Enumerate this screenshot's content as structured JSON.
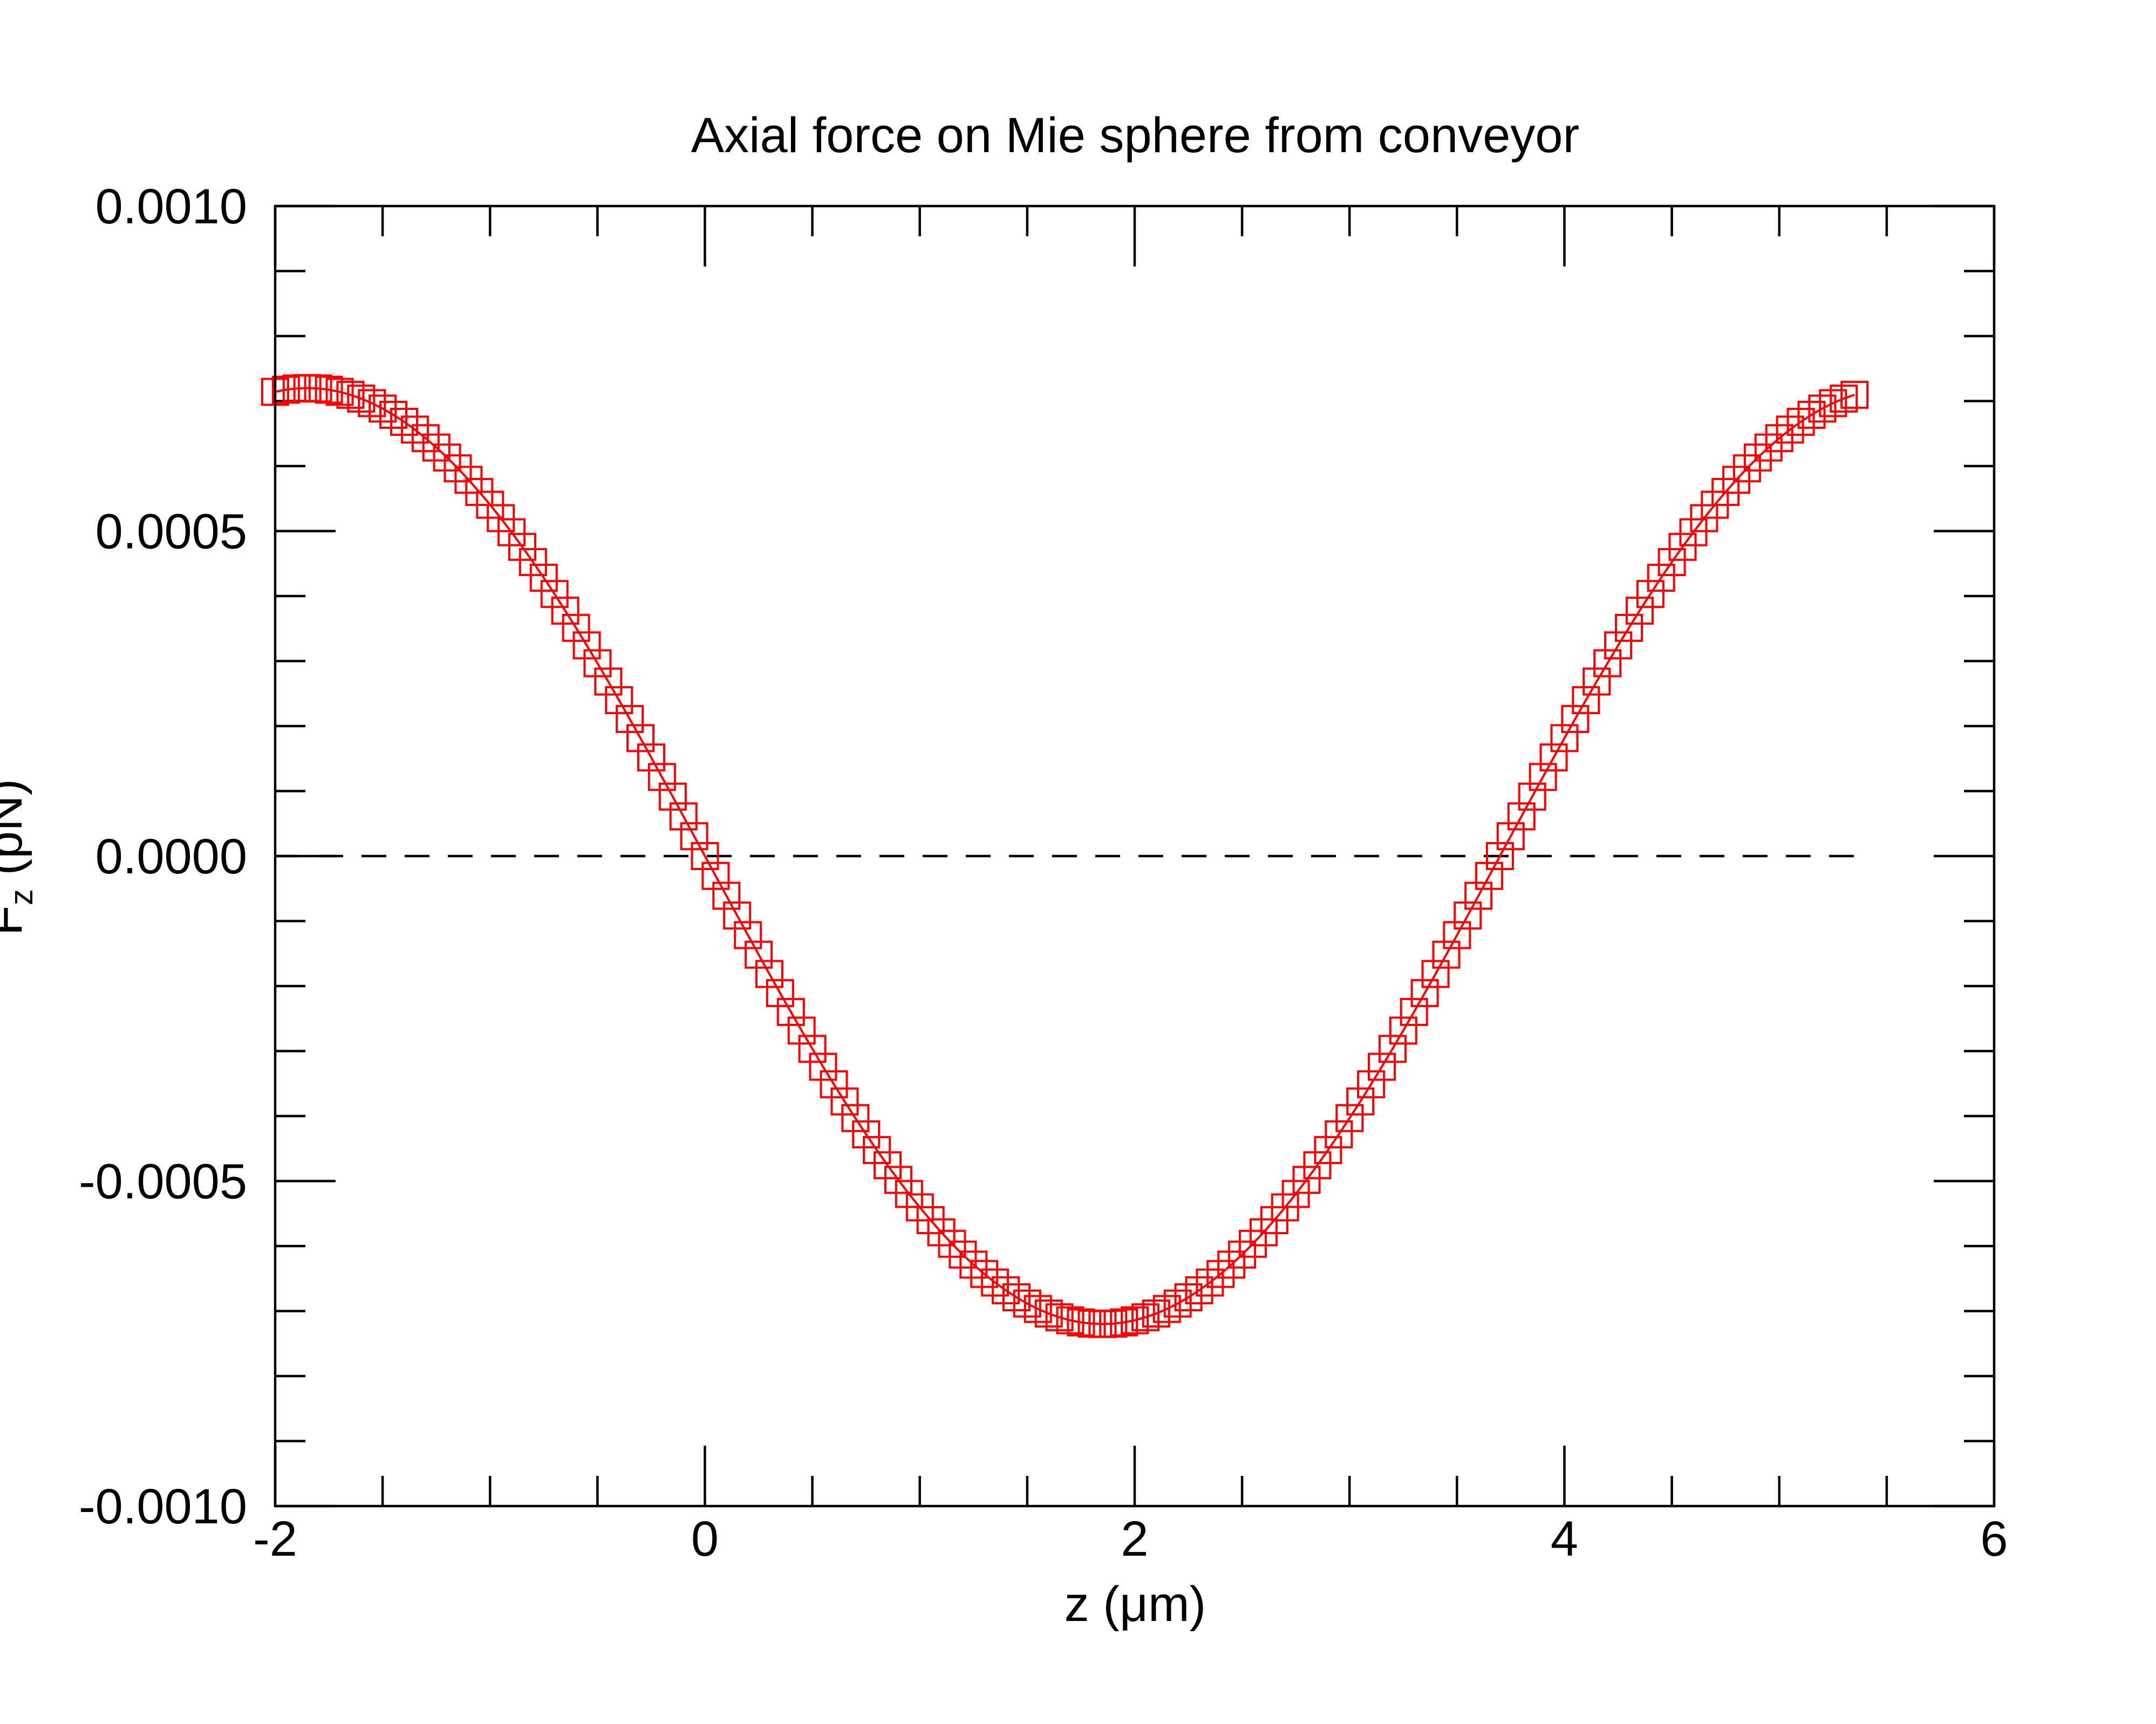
{
  "chart_data": {
    "type": "scatter",
    "title": "Axial force on Mie sphere from conveyor",
    "xlabel": "z (μm)",
    "ylabel": "F_z (pN)",
    "ylabel_main": "F",
    "ylabel_sub": "z",
    "ylabel_unit": " (pN)",
    "xlim": [
      -2,
      6
    ],
    "ylim": [
      -0.001,
      0.001
    ],
    "xticks": [
      -2,
      0,
      2,
      4,
      6
    ],
    "xtick_labels": [
      "-2",
      "0",
      "2",
      "4",
      "6"
    ],
    "yticks": [
      -0.001,
      -0.0005,
      0,
      0.0005,
      0.001
    ],
    "ytick_labels": [
      "-0.0010",
      "-0.0005",
      "0.0000",
      "0.0005",
      "0.0010"
    ],
    "x_minor_step": 0.5,
    "y_minor_step": 0.0001,
    "grid": false,
    "zero_line": {
      "y": 0,
      "x_range": [
        -2,
        5.35
      ],
      "style": "dashed",
      "color": "#000000"
    },
    "series": [
      {
        "color": "#ff0000",
        "marker": "square-open",
        "line": "solid",
        "x_start": -2.0,
        "x_end": 5.35,
        "x_step": 0.05,
        "model": {
          "amplitude": 0.00072,
          "period": 7.4,
          "phase_x": -1.85
        }
      }
    ]
  }
}
